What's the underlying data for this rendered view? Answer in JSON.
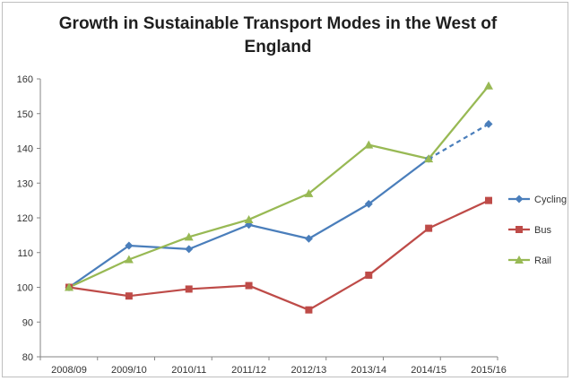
{
  "chart_data": {
    "type": "line",
    "title": "Growth in Sustainable Transport Modes in the West of England",
    "xlabel": "",
    "ylabel": "",
    "categories": [
      "2008/09",
      "2009/10",
      "2010/11",
      "2011/12",
      "2012/13",
      "2013/14",
      "2014/15",
      "2015/16"
    ],
    "ylim": [
      80,
      160
    ],
    "yticks": [
      80,
      90,
      100,
      110,
      120,
      130,
      140,
      150,
      160
    ],
    "grid": false,
    "legend_position": "right",
    "series": [
      {
        "name": "Cycling",
        "color": "#4a7ebb",
        "marker": "diamond",
        "values": [
          100,
          112,
          111,
          118,
          114,
          124,
          137,
          147
        ],
        "dashed_last_segment": true
      },
      {
        "name": "Bus",
        "color": "#be4b48",
        "marker": "square",
        "values": [
          100,
          97.5,
          99.5,
          100.5,
          93.5,
          103.5,
          117,
          125
        ]
      },
      {
        "name": "Rail",
        "color": "#98b954",
        "marker": "triangle",
        "values": [
          100,
          108,
          114.5,
          119.5,
          127,
          141,
          137,
          158
        ]
      }
    ]
  }
}
